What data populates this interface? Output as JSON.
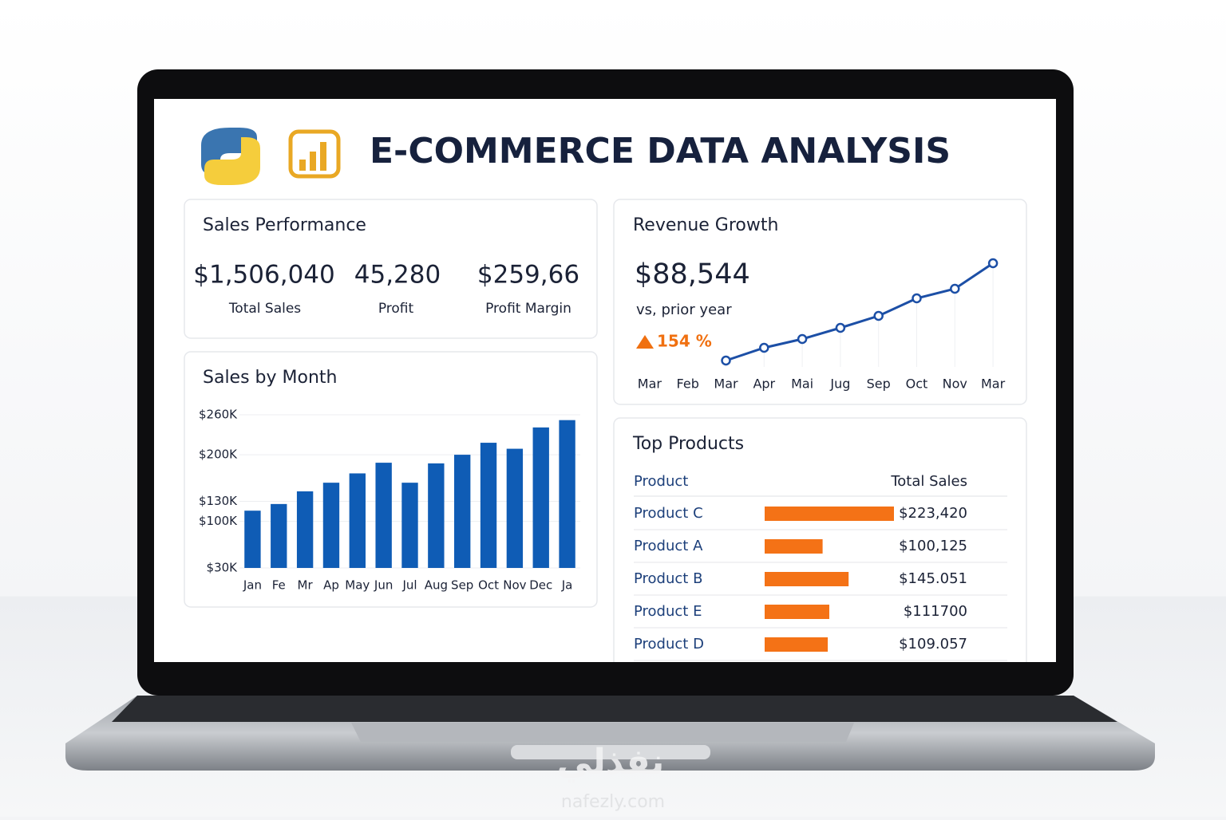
{
  "header": {
    "title": "E-COMMERCE DATA ANALYSIS"
  },
  "sales_performance": {
    "title": "Sales Performance",
    "kpis": [
      {
        "value": "$1,506,040",
        "label": "Total Sales"
      },
      {
        "value": "45,280",
        "label": "Profit"
      },
      {
        "value": "$259,66",
        "label": "Profit Margin"
      }
    ]
  },
  "watermark": {
    "brand": "نفذلي",
    "site": "nafezly.com"
  },
  "chart_data": [
    {
      "type": "bar",
      "title": "Sales by Month",
      "categories": [
        "Jan",
        "Fe",
        "Mr",
        "Ap",
        "May",
        "Jun",
        "Jul",
        "Aug",
        "Sep",
        "Oct",
        "Nov",
        "Dec",
        "Ja"
      ],
      "values": [
        116000,
        126000,
        145000,
        158000,
        172000,
        188000,
        158000,
        187000,
        200000,
        218000,
        209000,
        241000,
        252000
      ],
      "color": "#0f5cb5",
      "ylim": [
        30000,
        260000
      ],
      "yticks": [
        {
          "value": 30000,
          "label": "$30K"
        },
        {
          "value": 100000,
          "label": "$100K"
        },
        {
          "value": 130000,
          "label": "$130K"
        },
        {
          "value": 200000,
          "label": "$200K"
        },
        {
          "value": 260000,
          "label": "$260K"
        }
      ],
      "grid": true
    },
    {
      "type": "line",
      "title": "Revenue Growth",
      "kpi": "$88,544",
      "subtitle": "vs, prior year",
      "annotation": "154 %",
      "categories": [
        "Mar",
        "Feb",
        "Mar",
        "Apr",
        "Mai",
        "Jug",
        "Sep",
        "Oct",
        "Nov",
        "Mar"
      ],
      "values": [
        null,
        null,
        0,
        16,
        27,
        41,
        56,
        78,
        90,
        122
      ],
      "color": "#1c4fa6",
      "annotation_color": "#f07010"
    },
    {
      "type": "hbar",
      "title": "Top Products",
      "columns": [
        "Product",
        "Total Sales"
      ],
      "categories": [
        "Product C",
        "Product A",
        "Product B",
        "Product E",
        "Product D"
      ],
      "values": [
        223420,
        100125,
        145051,
        111700,
        109057
      ],
      "value_labels": [
        "$223,420",
        "$100,125",
        "$145.051",
        "$111700",
        "$109.057"
      ],
      "color": "#f47216"
    }
  ]
}
